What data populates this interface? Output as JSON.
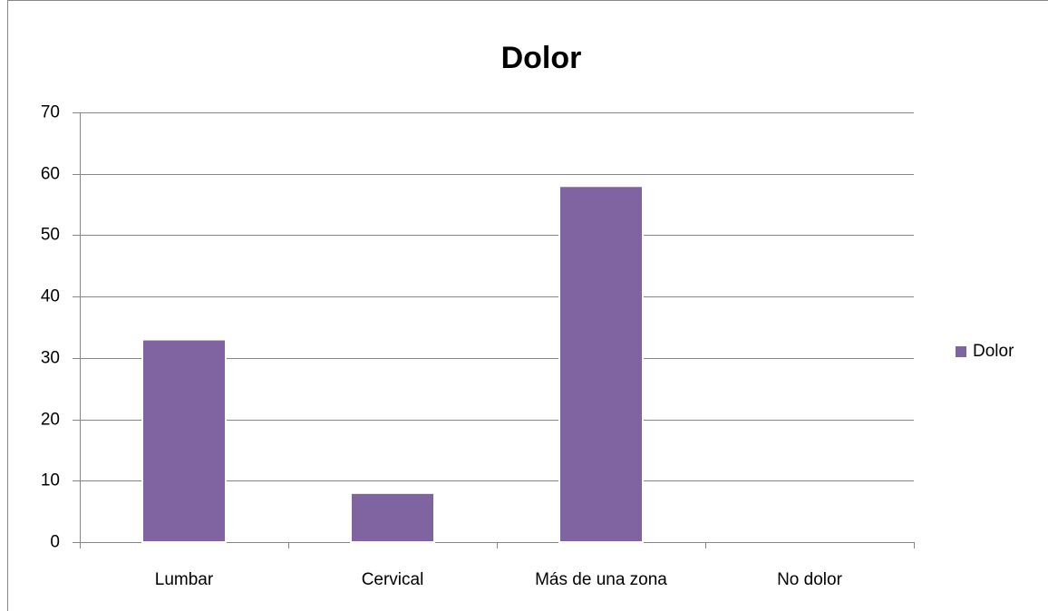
{
  "chart_data": {
    "type": "bar",
    "title": "Dolor",
    "categories": [
      "Lumbar",
      "Cervical",
      "Más de una zona",
      "No dolor"
    ],
    "series": [
      {
        "name": "Dolor",
        "color": "#8064a2",
        "values": [
          33,
          8,
          58,
          0
        ]
      }
    ],
    "ylim": [
      0,
      70
    ],
    "yticks": [
      0,
      10,
      20,
      30,
      40,
      50,
      60,
      70
    ],
    "grid": true,
    "legend": "right"
  }
}
